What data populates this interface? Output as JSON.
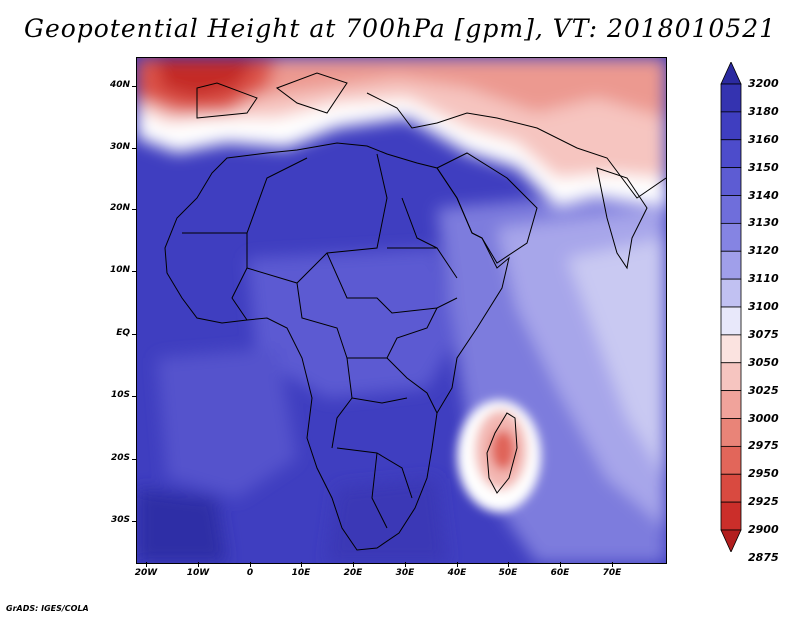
{
  "title": "Geopotential Height at 700hPa [gpm], VT: 2018010521",
  "credit": "GrADS: IGES/COLA",
  "colors": {
    "ocean_deep": "#3a37b8",
    "land_mid": "#5552cc",
    "land_light": "#7a78db",
    "pale_blue": "#c8c8f0",
    "white": "#ffffff",
    "pink": "#f3b7b2",
    "salmon": "#e98980",
    "red": "#d43a35",
    "dark_red": "#b21e1e"
  },
  "map": {
    "lon_range": [
      -23,
      80
    ],
    "lat_range": [
      -37,
      45
    ],
    "lat_labels": [
      "40N",
      "30N",
      "20N",
      "10N",
      "EQ",
      "10S",
      "20S",
      "30S"
    ],
    "lon_labels": [
      "20W",
      "10W",
      "0",
      "10E",
      "20E",
      "30E",
      "40E",
      "50E",
      "60E",
      "70E"
    ]
  },
  "colorbar": {
    "levels": [
      "3200",
      "3180",
      "3160",
      "3150",
      "3140",
      "3130",
      "3120",
      "3110",
      "3100",
      "3075",
      "3050",
      "3025",
      "3000",
      "2975",
      "2950",
      "2925",
      "2900",
      "2875"
    ],
    "colors": [
      "#2b2aa0",
      "#3433b0",
      "#3f3ec0",
      "#4d4ccb",
      "#5d5cd3",
      "#6f6edb",
      "#8584e3",
      "#a09fea",
      "#c1c1f2",
      "#e8e8fa",
      "#fbe3e0",
      "#f6c5c0",
      "#f0a39b",
      "#e98478",
      "#e2665a",
      "#d94a40",
      "#cb2e2a",
      "#b21e1e"
    ]
  }
}
